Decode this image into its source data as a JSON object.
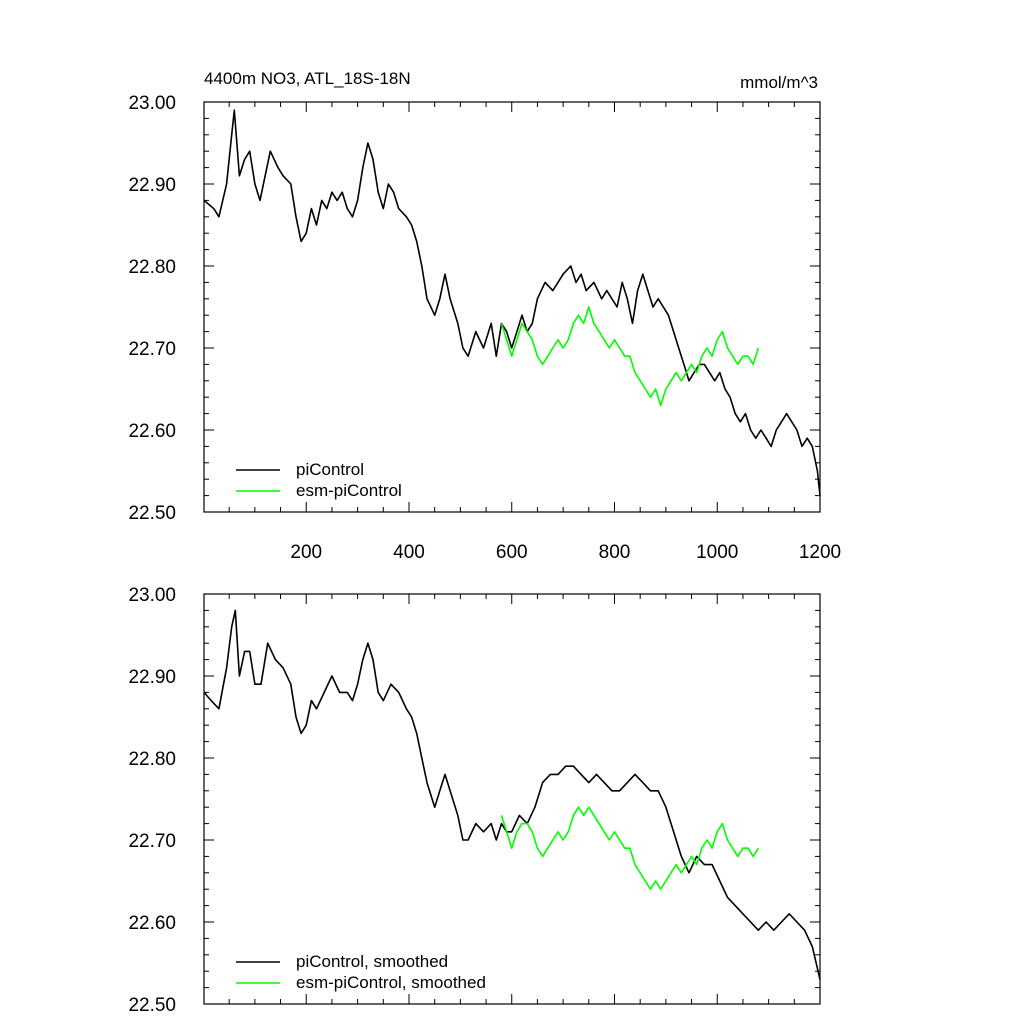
{
  "chart_data": [
    {
      "type": "line",
      "title": "4400m NO3, ATL_18S-18N",
      "units": "mmol/m^3",
      "xlabel": "",
      "ylabel": "",
      "xlim": [
        1,
        1200
      ],
      "ylim": [
        22.5,
        23.0
      ],
      "xticks": [
        200,
        400,
        600,
        800,
        1000,
        1200
      ],
      "xtick_labels": [
        "200",
        "400",
        "600",
        "800",
        "1000",
        "1200"
      ],
      "yticks": [
        22.5,
        22.6,
        22.7,
        22.8,
        22.9,
        23.0
      ],
      "ytick_labels": [
        "22.50",
        "22.60",
        "22.70",
        "22.80",
        "22.90",
        "23.00"
      ],
      "legend_position": "bottom-left",
      "series": [
        {
          "name": "piControl",
          "color": "#000000",
          "x": [
            1,
            20,
            30,
            45,
            55,
            60,
            70,
            80,
            90,
            100,
            110,
            130,
            145,
            155,
            170,
            180,
            190,
            200,
            210,
            220,
            230,
            240,
            250,
            260,
            270,
            280,
            290,
            300,
            310,
            320,
            330,
            340,
            350,
            360,
            370,
            380,
            395,
            405,
            415,
            425,
            435,
            450,
            460,
            470,
            480,
            495,
            505,
            515,
            530,
            545,
            560,
            570,
            580,
            590,
            600,
            610,
            620,
            630,
            640,
            650,
            665,
            680,
            690,
            700,
            715,
            725,
            735,
            745,
            760,
            775,
            785,
            795,
            805,
            815,
            825,
            835,
            845,
            855,
            865,
            875,
            885,
            895,
            905,
            915,
            925,
            935,
            945,
            955,
            965,
            975,
            985,
            995,
            1005,
            1015,
            1025,
            1035,
            1045,
            1055,
            1065,
            1075,
            1085,
            1095,
            1105,
            1115,
            1125,
            1135,
            1145,
            1155,
            1165,
            1175,
            1185,
            1195,
            1200
          ],
          "y": [
            22.88,
            22.87,
            22.86,
            22.9,
            22.96,
            22.99,
            22.91,
            22.93,
            22.94,
            22.9,
            22.88,
            22.94,
            22.92,
            22.91,
            22.9,
            22.86,
            22.83,
            22.84,
            22.87,
            22.85,
            22.88,
            22.87,
            22.89,
            22.88,
            22.89,
            22.87,
            22.86,
            22.88,
            22.92,
            22.95,
            22.93,
            22.89,
            22.87,
            22.9,
            22.89,
            22.87,
            22.86,
            22.85,
            22.83,
            22.8,
            22.76,
            22.74,
            22.76,
            22.79,
            22.76,
            22.73,
            22.7,
            22.69,
            22.72,
            22.7,
            22.73,
            22.69,
            22.73,
            22.72,
            22.7,
            22.72,
            22.74,
            22.72,
            22.73,
            22.76,
            22.78,
            22.77,
            22.78,
            22.79,
            22.8,
            22.78,
            22.79,
            22.77,
            22.78,
            22.76,
            22.77,
            22.76,
            22.75,
            22.78,
            22.76,
            22.73,
            22.77,
            22.79,
            22.77,
            22.75,
            22.76,
            22.75,
            22.74,
            22.72,
            22.7,
            22.68,
            22.66,
            22.67,
            22.68,
            22.68,
            22.67,
            22.66,
            22.67,
            22.65,
            22.64,
            22.62,
            22.61,
            22.62,
            22.6,
            22.59,
            22.6,
            22.59,
            22.58,
            22.6,
            22.61,
            22.62,
            22.61,
            22.6,
            22.58,
            22.59,
            22.58,
            22.55,
            22.52
          ]
        },
        {
          "name": "esm-piControl",
          "color": "#00ff00",
          "x": [
            580,
            590,
            600,
            610,
            620,
            630,
            640,
            650,
            660,
            670,
            680,
            690,
            700,
            710,
            720,
            730,
            740,
            750,
            760,
            770,
            780,
            790,
            800,
            810,
            820,
            830,
            840,
            850,
            860,
            870,
            880,
            890,
            900,
            910,
            920,
            930,
            940,
            950,
            960,
            970,
            980,
            990,
            1000,
            1010,
            1020,
            1030,
            1040,
            1050,
            1060,
            1070,
            1080
          ],
          "y": [
            22.73,
            22.71,
            22.69,
            22.71,
            22.73,
            22.72,
            22.71,
            22.69,
            22.68,
            22.69,
            22.7,
            22.71,
            22.7,
            22.71,
            22.73,
            22.74,
            22.73,
            22.75,
            22.73,
            22.72,
            22.71,
            22.7,
            22.71,
            22.7,
            22.69,
            22.69,
            22.67,
            22.66,
            22.65,
            22.64,
            22.65,
            22.63,
            22.65,
            22.66,
            22.67,
            22.66,
            22.67,
            22.68,
            22.67,
            22.69,
            22.7,
            22.69,
            22.71,
            22.72,
            22.7,
            22.69,
            22.68,
            22.69,
            22.69,
            22.68,
            22.7
          ]
        }
      ]
    },
    {
      "type": "line",
      "title": "",
      "xlabel": "",
      "ylabel": "",
      "xlim": [
        1,
        1200
      ],
      "ylim": [
        22.5,
        23.0
      ],
      "xticks": [
        200,
        400,
        600,
        800,
        1000,
        1200
      ],
      "xtick_labels": [],
      "yticks": [
        22.5,
        22.6,
        22.7,
        22.8,
        22.9,
        23.0
      ],
      "ytick_labels": [
        "22.50",
        "22.60",
        "22.70",
        "22.80",
        "22.90",
        "23.00"
      ],
      "legend_position": "bottom-left",
      "series": [
        {
          "name": "piControl, smoothed",
          "color": "#000000",
          "x": [
            1,
            15,
            30,
            45,
            55,
            62,
            70,
            80,
            90,
            100,
            112,
            125,
            140,
            155,
            170,
            180,
            190,
            200,
            210,
            220,
            235,
            250,
            265,
            280,
            290,
            300,
            310,
            320,
            330,
            340,
            350,
            365,
            380,
            395,
            405,
            415,
            425,
            435,
            450,
            460,
            470,
            480,
            495,
            505,
            515,
            530,
            545,
            560,
            570,
            580,
            590,
            600,
            615,
            630,
            645,
            660,
            675,
            690,
            705,
            720,
            735,
            750,
            765,
            780,
            795,
            810,
            825,
            840,
            855,
            870,
            885,
            900,
            915,
            930,
            945,
            960,
            975,
            990,
            1005,
            1020,
            1035,
            1050,
            1065,
            1080,
            1095,
            1110,
            1125,
            1140,
            1155,
            1170,
            1185,
            1200
          ],
          "y": [
            22.88,
            22.87,
            22.86,
            22.91,
            22.96,
            22.98,
            22.9,
            22.93,
            22.93,
            22.89,
            22.89,
            22.94,
            22.92,
            22.91,
            22.89,
            22.85,
            22.83,
            22.84,
            22.87,
            22.86,
            22.88,
            22.9,
            22.88,
            22.88,
            22.87,
            22.89,
            22.92,
            22.94,
            22.92,
            22.88,
            22.87,
            22.89,
            22.88,
            22.86,
            22.85,
            22.83,
            22.8,
            22.77,
            22.74,
            22.76,
            22.78,
            22.76,
            22.73,
            22.7,
            22.7,
            22.72,
            22.71,
            22.72,
            22.7,
            22.72,
            22.71,
            22.71,
            22.73,
            22.72,
            22.74,
            22.77,
            22.78,
            22.78,
            22.79,
            22.79,
            22.78,
            22.77,
            22.78,
            22.77,
            22.76,
            22.76,
            22.77,
            22.78,
            22.77,
            22.76,
            22.76,
            22.74,
            22.71,
            22.68,
            22.66,
            22.68,
            22.67,
            22.67,
            22.65,
            22.63,
            22.62,
            22.61,
            22.6,
            22.59,
            22.6,
            22.59,
            22.6,
            22.61,
            22.6,
            22.59,
            22.57,
            22.53
          ]
        },
        {
          "name": "esm-piControl, smoothed",
          "color": "#00ff00",
          "x": [
            580,
            590,
            600,
            610,
            620,
            630,
            640,
            650,
            660,
            670,
            680,
            690,
            700,
            710,
            720,
            730,
            740,
            750,
            760,
            770,
            780,
            790,
            800,
            810,
            820,
            830,
            840,
            850,
            860,
            870,
            880,
            890,
            900,
            910,
            920,
            930,
            940,
            950,
            960,
            970,
            980,
            990,
            1000,
            1010,
            1020,
            1030,
            1040,
            1050,
            1060,
            1070,
            1080
          ],
          "y": [
            22.73,
            22.71,
            22.69,
            22.71,
            22.72,
            22.72,
            22.71,
            22.69,
            22.68,
            22.69,
            22.7,
            22.71,
            22.7,
            22.71,
            22.73,
            22.74,
            22.73,
            22.74,
            22.73,
            22.72,
            22.71,
            22.7,
            22.71,
            22.7,
            22.69,
            22.69,
            22.67,
            22.66,
            22.65,
            22.64,
            22.65,
            22.64,
            22.65,
            22.66,
            22.67,
            22.66,
            22.67,
            22.68,
            22.67,
            22.69,
            22.7,
            22.69,
            22.71,
            22.72,
            22.7,
            22.69,
            22.68,
            22.69,
            22.69,
            22.68,
            22.69
          ]
        }
      ]
    }
  ]
}
